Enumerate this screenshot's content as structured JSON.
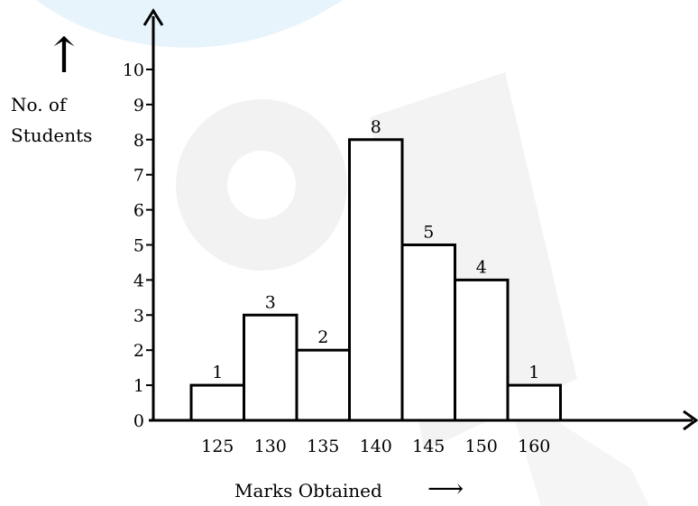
{
  "colors": {
    "bar_fill": "#ffffff",
    "stroke": "#000000",
    "watermark": "#dff0fa",
    "watermark_gray": "#eeeeee"
  },
  "chart_data": {
    "type": "bar",
    "categories": [
      "125",
      "130",
      "135",
      "140",
      "145",
      "150",
      "160"
    ],
    "values": [
      1,
      3,
      2,
      8,
      5,
      4,
      1
    ],
    "data_labels": [
      "1",
      "3",
      "2",
      "8",
      "5",
      "4",
      "1"
    ],
    "xlabel": "Marks Obtained",
    "xlabel_arrow": "⟶",
    "ylabel_lines": [
      "No. of",
      "Students"
    ],
    "ylabel_arrow": "↑",
    "yticks": [
      "0",
      "1",
      "2",
      "3",
      "4",
      "5",
      "6",
      "7",
      "8",
      "9",
      "10"
    ],
    "ylim": [
      0,
      10
    ],
    "grid": false
  }
}
